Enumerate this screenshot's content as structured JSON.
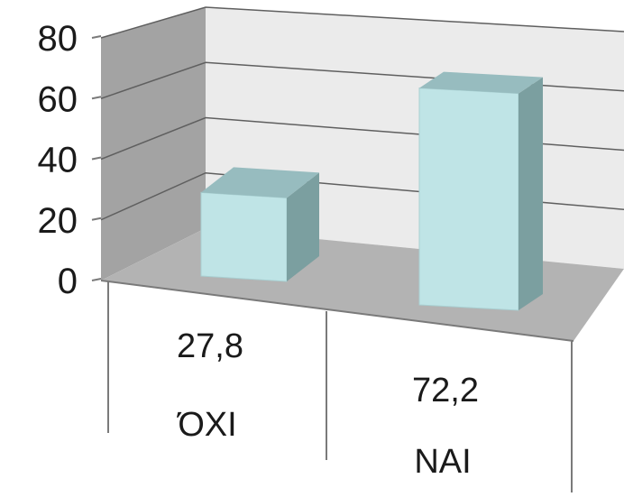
{
  "chart_data": {
    "type": "bar",
    "style": "3d-column",
    "categories": [
      "ΌΧΙ",
      "ΝΑΙ"
    ],
    "values": [
      27.8,
      72.2
    ],
    "value_labels": [
      "27,8",
      "72,2"
    ],
    "y_ticks": [
      "0",
      "20",
      "40",
      "60",
      "80"
    ],
    "ylim": [
      0,
      80
    ],
    "grid": true,
    "legend": "none",
    "colors": {
      "bar_front": "#bfe4e6",
      "bar_side": "#7b9fa0",
      "bar_top": "#97bcbf",
      "back_wall": "#ebebeb",
      "side_wall": "#a3a3a3",
      "floor": "#b3b3b3",
      "grid": "#5f5f5f"
    }
  }
}
